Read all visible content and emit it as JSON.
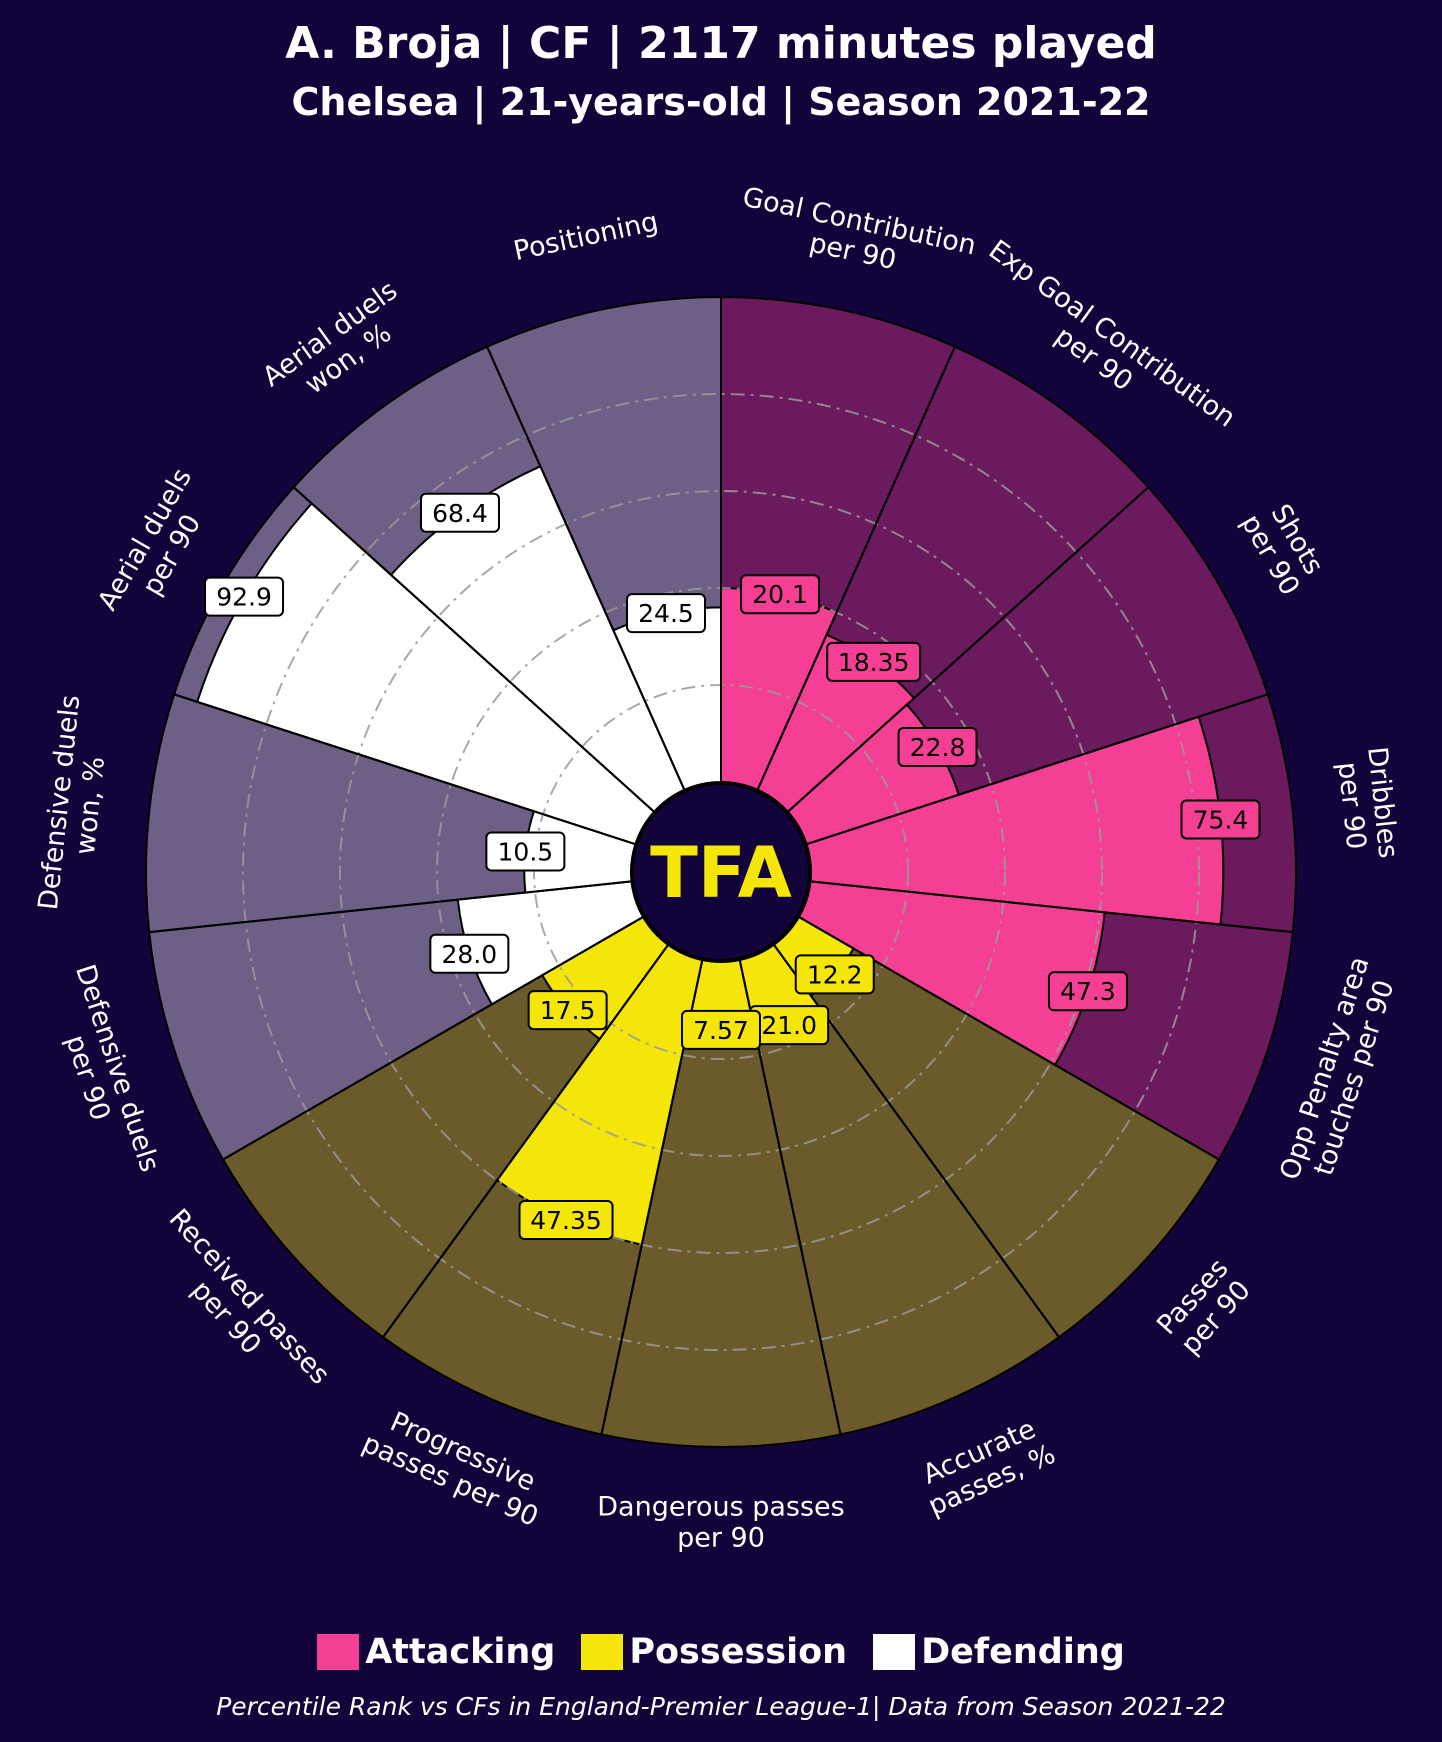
{
  "header": {
    "title": "A. Broja | CF | 2117 minutes played",
    "subtitle": "Chelsea | 21-years-old | Season 2021-22"
  },
  "logo": {
    "text": "TFA",
    "color": "#f5e60a"
  },
  "legend": [
    {
      "label": "Attacking",
      "color": "#f53f94"
    },
    {
      "label": "Possession",
      "color": "#f5e60a"
    },
    {
      "label": "Defending",
      "color": "#ffffff"
    }
  ],
  "footnote": "Percentile Rank vs CFs in England-Premier League-1| Data from Season 2021-22",
  "chart_data": {
    "type": "pizza",
    "value_range": [
      0,
      100
    ],
    "grid_rings": [
      20,
      40,
      60,
      80
    ],
    "groups": {
      "attacking": {
        "fill": "#f53f94",
        "background": "#6b1a5e"
      },
      "possession": {
        "fill": "#f5e60a",
        "background": "#6b5a2a"
      },
      "defending": {
        "fill": "#ffffff",
        "background": "#6e5f86"
      }
    },
    "slices": [
      {
        "label": "Goal Contribution\nper 90",
        "percentile": 40,
        "value_label": "20.1",
        "group": "attacking"
      },
      {
        "label": "Exp Goal Contribution\nper 90",
        "percentile": 35,
        "value_label": "18.35",
        "group": "attacking"
      },
      {
        "label": "Shots\nper 90",
        "percentile": 33,
        "value_label": "22.8",
        "group": "attacking"
      },
      {
        "label": "Dribbles\nper 90",
        "percentile": 85,
        "value_label": "75.4",
        "group": "attacking"
      },
      {
        "label": "Opp Penalty area\ntouches per 90",
        "percentile": 61,
        "value_label": "47.3",
        "group": "attacking"
      },
      {
        "label": "Passes\nper 90",
        "percentile": 13,
        "value_label": "12.2",
        "group": "possession"
      },
      {
        "label": "Accurate\npasses, %",
        "percentile": 16,
        "value_label": "21.0",
        "group": "possession"
      },
      {
        "label": "Dangerous passes\nper 90",
        "percentile": 14,
        "value_label": "7.57",
        "group": "possession"
      },
      {
        "label": "Progressive\npasses per 90",
        "percentile": 60,
        "value_label": "47.35",
        "group": "possession"
      },
      {
        "label": "Received passes\nper 90",
        "percentile": 24,
        "value_label": "17.5",
        "group": "possession"
      },
      {
        "label": "Defensive duels\nper 90",
        "percentile": 36,
        "value_label": "28.0",
        "group": "defending"
      },
      {
        "label": "Defensive duels\nwon, %",
        "percentile": 22,
        "value_label": "10.5",
        "group": "defending"
      },
      {
        "label": "Aerial duels\nper 90",
        "percentile": 95,
        "value_label": "92.9",
        "group": "defending"
      },
      {
        "label": "Aerial duels\nwon, %",
        "percentile": 73,
        "value_label": "68.4",
        "group": "defending"
      },
      {
        "label": "Positioning",
        "percentile": 36,
        "value_label": "24.5",
        "group": "defending"
      }
    ]
  }
}
